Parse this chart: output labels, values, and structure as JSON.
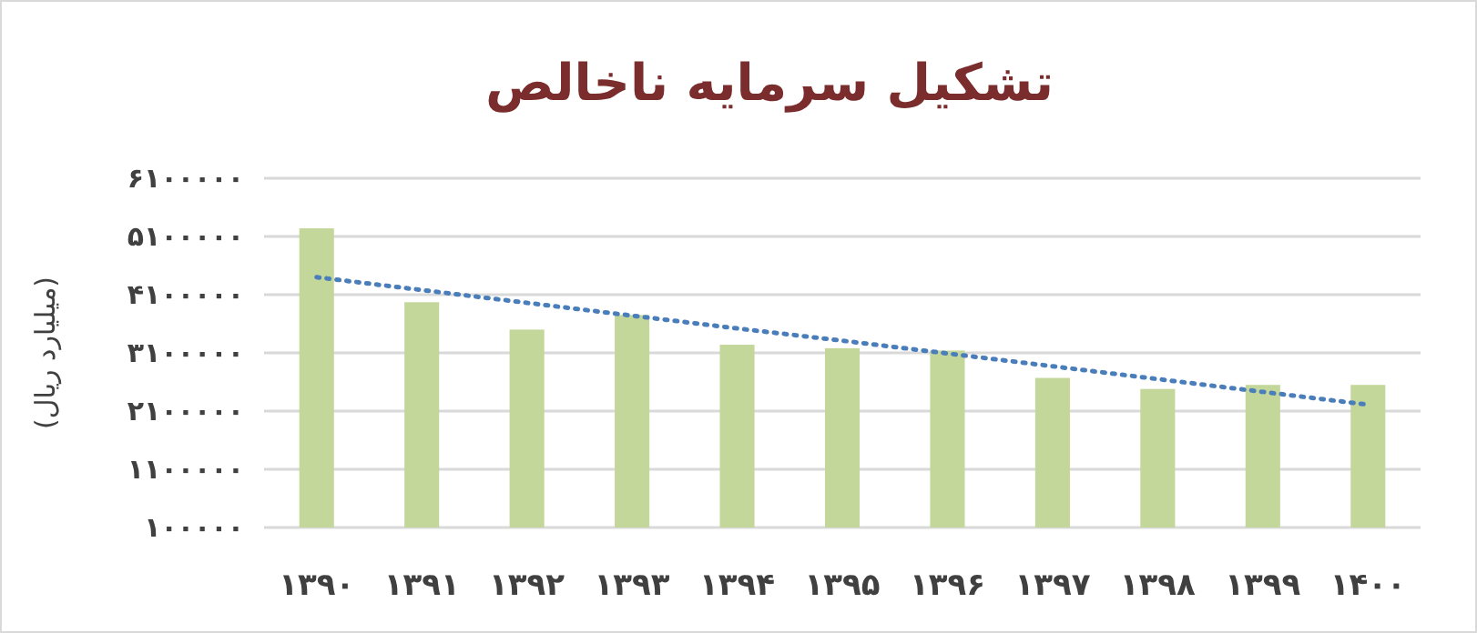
{
  "chart_data": {
    "type": "bar",
    "title": "تشکیل سرمایه ناخالص",
    "ylabel": "(میلیارد ریال)",
    "categories": [
      "۱۳۹۰",
      "۱۳۹۱",
      "۱۳۹۲",
      "۱۳۹۳",
      "۱۳۹۴",
      "۱۳۹۵",
      "۱۳۹۶",
      "۱۳۹۷",
      "۱۳۹۸",
      "۱۳۹۹",
      "۱۴۰۰"
    ],
    "series": [
      {
        "color": "#c4d79b",
        "values": [
          5240000,
          3970000,
          3500000,
          3750000,
          3240000,
          3180000,
          3140000,
          2670000,
          2480000,
          2550000,
          2550000
        ]
      },
      {
        "type": "line",
        "color": "#4a7ebb",
        "line_style": "dotted",
        "values": [
          4400000,
          4180000,
          3960000,
          3740000,
          3520000,
          3310000,
          3090000,
          2870000,
          2650000,
          2430000,
          2210000
        ]
      }
    ],
    "ylim": [
      100000,
      6100000
    ],
    "yticks": [
      {
        "value": 100000,
        "label": "۱۰۰۰۰۰"
      },
      {
        "value": 1100000,
        "label": "۱۱۰۰۰۰۰"
      },
      {
        "value": 2100000,
        "label": "۲۱۰۰۰۰۰"
      },
      {
        "value": 3100000,
        "label": "۳۱۰۰۰۰۰"
      },
      {
        "value": 4100000,
        "label": "۴۱۰۰۰۰۰"
      },
      {
        "value": 5100000,
        "label": "۵۱۰۰۰۰۰"
      },
      {
        "value": 6100000,
        "label": "۶۱۰۰۰۰۰"
      }
    ],
    "grid": "y"
  }
}
